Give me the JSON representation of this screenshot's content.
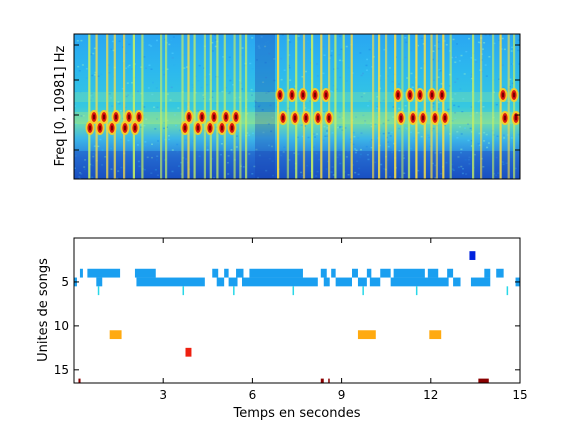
{
  "chart_data": [
    {
      "type": "heatmap",
      "title": "",
      "xlabel": "",
      "ylabel": "Freq [0, 10981] Hz",
      "xlim": [
        0,
        15
      ],
      "ylim": [
        0,
        10981
      ],
      "colormap": "jet",
      "grid": false
    },
    {
      "type": "scatter",
      "title": "",
      "xlabel": "Temps en secondes",
      "ylabel": "Unites de songs",
      "xlim": [
        0,
        15
      ],
      "ylim": [
        16.5,
        0
      ],
      "xticks": [
        3,
        6,
        9,
        12,
        15
      ],
      "xtick_labels": [
        "3",
        "6",
        "9",
        "12",
        "15"
      ],
      "yticks": [
        5,
        10,
        15
      ],
      "ytick_labels": [
        "5",
        "10",
        "15"
      ],
      "grid": false,
      "segments": [
        {
          "unit": 2,
          "start": 13.3,
          "end": 13.5,
          "color": "#0022dd"
        },
        {
          "unit": 4,
          "start": 0.2,
          "end": 0.3,
          "color": "#1a9ff0"
        },
        {
          "unit": 4,
          "start": 0.45,
          "end": 1.55,
          "color": "#1a9ff0"
        },
        {
          "unit": 4,
          "start": 2.05,
          "end": 2.75,
          "color": "#1a9ff0"
        },
        {
          "unit": 4,
          "start": 4.65,
          "end": 4.85,
          "color": "#1a9ff0"
        },
        {
          "unit": 4,
          "start": 5.05,
          "end": 5.2,
          "color": "#1a9ff0"
        },
        {
          "unit": 4,
          "start": 5.45,
          "end": 5.7,
          "color": "#1a9ff0"
        },
        {
          "unit": 4,
          "start": 5.9,
          "end": 7.7,
          "color": "#1a9ff0"
        },
        {
          "unit": 4,
          "start": 8.3,
          "end": 8.5,
          "color": "#1a9ff0"
        },
        {
          "unit": 4,
          "start": 8.65,
          "end": 8.8,
          "color": "#1a9ff0"
        },
        {
          "unit": 4,
          "start": 9.35,
          "end": 9.55,
          "color": "#1a9ff0"
        },
        {
          "unit": 4,
          "start": 9.85,
          "end": 10.0,
          "color": "#1a9ff0"
        },
        {
          "unit": 4,
          "start": 10.3,
          "end": 10.65,
          "color": "#1a9ff0"
        },
        {
          "unit": 4,
          "start": 10.75,
          "end": 11.8,
          "color": "#1a9ff0"
        },
        {
          "unit": 4,
          "start": 11.9,
          "end": 12.25,
          "color": "#1a9ff0"
        },
        {
          "unit": 4,
          "start": 12.55,
          "end": 12.75,
          "color": "#1a9ff0"
        },
        {
          "unit": 4,
          "start": 13.8,
          "end": 14.0,
          "color": "#1a9ff0"
        },
        {
          "unit": 4,
          "start": 14.2,
          "end": 14.45,
          "color": "#1a9ff0"
        },
        {
          "unit": 5,
          "start": 0.0,
          "end": 0.1,
          "color": "#1a9ff0"
        },
        {
          "unit": 5,
          "start": 0.75,
          "end": 0.95,
          "color": "#1a9ff0"
        },
        {
          "unit": 5,
          "start": 2.1,
          "end": 4.4,
          "color": "#1a9ff0"
        },
        {
          "unit": 5,
          "start": 4.8,
          "end": 5.05,
          "color": "#1a9ff0"
        },
        {
          "unit": 5,
          "start": 5.2,
          "end": 5.5,
          "color": "#1a9ff0"
        },
        {
          "unit": 5,
          "start": 5.65,
          "end": 8.2,
          "color": "#1a9ff0"
        },
        {
          "unit": 5,
          "start": 8.4,
          "end": 8.6,
          "color": "#1a9ff0"
        },
        {
          "unit": 5,
          "start": 8.8,
          "end": 9.35,
          "color": "#1a9ff0"
        },
        {
          "unit": 5,
          "start": 9.55,
          "end": 9.85,
          "color": "#1a9ff0"
        },
        {
          "unit": 5,
          "start": 9.95,
          "end": 10.3,
          "color": "#1a9ff0"
        },
        {
          "unit": 5,
          "start": 10.65,
          "end": 12.6,
          "color": "#1a9ff0"
        },
        {
          "unit": 5,
          "start": 12.75,
          "end": 13.0,
          "color": "#1a9ff0"
        },
        {
          "unit": 5,
          "start": 13.35,
          "end": 14.0,
          "color": "#1a9ff0"
        },
        {
          "unit": 5,
          "start": 14.85,
          "end": 15.0,
          "color": "#1a9ff0"
        },
        {
          "unit": 6,
          "start": 0.8,
          "end": 0.84,
          "color": "#28d8e8"
        },
        {
          "unit": 6,
          "start": 3.65,
          "end": 3.69,
          "color": "#28d8e8"
        },
        {
          "unit": 6,
          "start": 5.35,
          "end": 5.39,
          "color": "#28d8e8"
        },
        {
          "unit": 6,
          "start": 7.35,
          "end": 7.39,
          "color": "#28d8e8"
        },
        {
          "unit": 6,
          "start": 9.7,
          "end": 9.74,
          "color": "#28d8e8"
        },
        {
          "unit": 6,
          "start": 11.5,
          "end": 11.54,
          "color": "#28d8e8"
        },
        {
          "unit": 6,
          "start": 14.55,
          "end": 14.6,
          "color": "#28d8e8"
        },
        {
          "unit": 11,
          "start": 1.2,
          "end": 1.6,
          "color": "#ffaa10"
        },
        {
          "unit": 11,
          "start": 9.55,
          "end": 10.15,
          "color": "#ffaa10"
        },
        {
          "unit": 11,
          "start": 11.95,
          "end": 12.35,
          "color": "#ffaa10"
        },
        {
          "unit": 13,
          "start": 3.75,
          "end": 3.95,
          "color": "#ee2010"
        },
        {
          "unit": 16.5,
          "start": 0.15,
          "end": 0.22,
          "color": "#8a0000"
        },
        {
          "unit": 16.5,
          "start": 8.3,
          "end": 8.4,
          "color": "#8a0000"
        },
        {
          "unit": 16.5,
          "start": 8.55,
          "end": 8.6,
          "color": "#8a0000"
        },
        {
          "unit": 16.5,
          "start": 13.6,
          "end": 13.95,
          "color": "#8a0000"
        }
      ]
    }
  ]
}
